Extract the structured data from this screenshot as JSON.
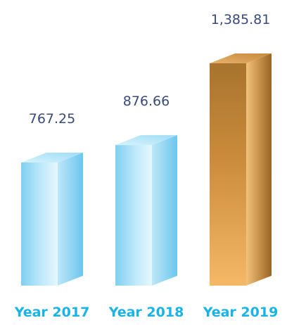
{
  "chart_data": {
    "type": "bar",
    "title": "",
    "xlabel": "",
    "ylabel": "",
    "categories": [
      "Year 2017",
      "Year 2018",
      "Year 2019"
    ],
    "values": [
      767.25,
      876.66,
      1385.81
    ],
    "value_labels": [
      "767.25",
      "876.66",
      "1,385.81"
    ],
    "ylim": [
      0,
      1385.81
    ],
    "grid": false,
    "colors": [
      "#8fd6f2",
      "#8fd6f2",
      "#d9963a"
    ]
  }
}
